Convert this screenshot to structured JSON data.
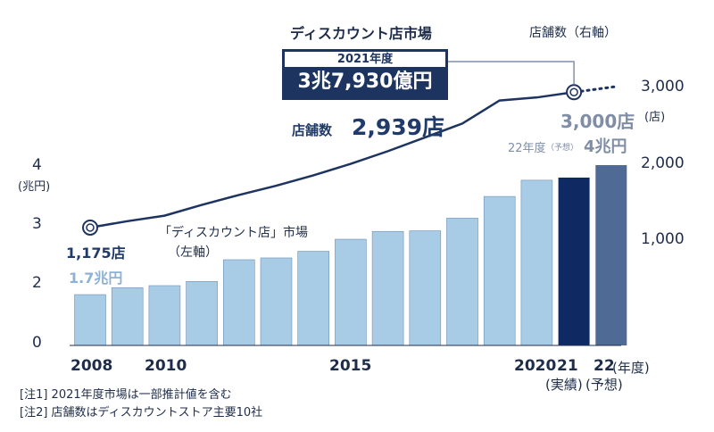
{
  "chart_data": {
    "type": "bar",
    "title": "ディスカウント店市場",
    "categories": [
      "2008",
      "",
      "2010",
      "",
      "",
      "",
      "",
      "2015",
      "",
      "",
      "",
      "",
      "2020",
      "21",
      "22"
    ],
    "x_tick_labels": [
      "2008",
      "2010",
      "2015",
      "2020",
      "21",
      "22"
    ],
    "x_unit_label": "(年度)",
    "x_sub_labels": {
      "21": "(実績)",
      "22": "(予想)"
    },
    "series": [
      {
        "name": "「ディスカウント店」市場",
        "axis": "left",
        "values": [
          1.7,
          1.93,
          2.0,
          2.07,
          2.43,
          2.46,
          2.57,
          2.77,
          2.9,
          2.91,
          3.12,
          3.48,
          3.75,
          3.793,
          4.0
        ],
        "colors": {
          "actual": "#a8cbe6",
          "2021": "#0f2a63",
          "2022": "#506a96"
        }
      },
      {
        "name": "店舗数",
        "axis": "right",
        "type": "line",
        "values": [
          1175,
          1258,
          1330,
          1470,
          1600,
          1720,
          1855,
          2005,
          2170,
          2350,
          2530,
          2830,
          2870,
          2939,
          3000
        ],
        "forecast_from_index": 13,
        "color": "#1d3461"
      }
    ],
    "left_axis": {
      "unit": "(兆円)",
      "ticks": [
        "0",
        "2",
        "3",
        "4"
      ],
      "range": [
        0,
        4.5
      ],
      "tick_values": [
        0,
        2,
        3,
        4
      ]
    },
    "right_axis": {
      "title": "店舗数（右軸）",
      "unit": "(店)",
      "ticks": [
        "1,000",
        "2,000",
        "3,000"
      ],
      "tick_values": [
        1000,
        2000,
        3000
      ],
      "range": [
        0,
        3570
      ]
    },
    "grid": false,
    "legend": "none"
  },
  "labels": {
    "series_label_line1": "「ディスカウント店」市場",
    "series_label_line2": "（左軸）",
    "start_stores": "1,175店",
    "start_market": "1.7兆円",
    "forecast_year": "22年度",
    "forecast_tag": "（予想）",
    "forecast_market": "4兆円",
    "forecast_stores": "3,000店",
    "callout_year": "2021年度",
    "callout_value": "3兆7,930億円",
    "callout_stores_label": "店舗数",
    "callout_stores_value": "2,939店"
  },
  "notes": [
    "[注1] 2021年度市場は一部推計値を含む",
    "[注2] 店舗数はディスカウントストア主要10社"
  ]
}
